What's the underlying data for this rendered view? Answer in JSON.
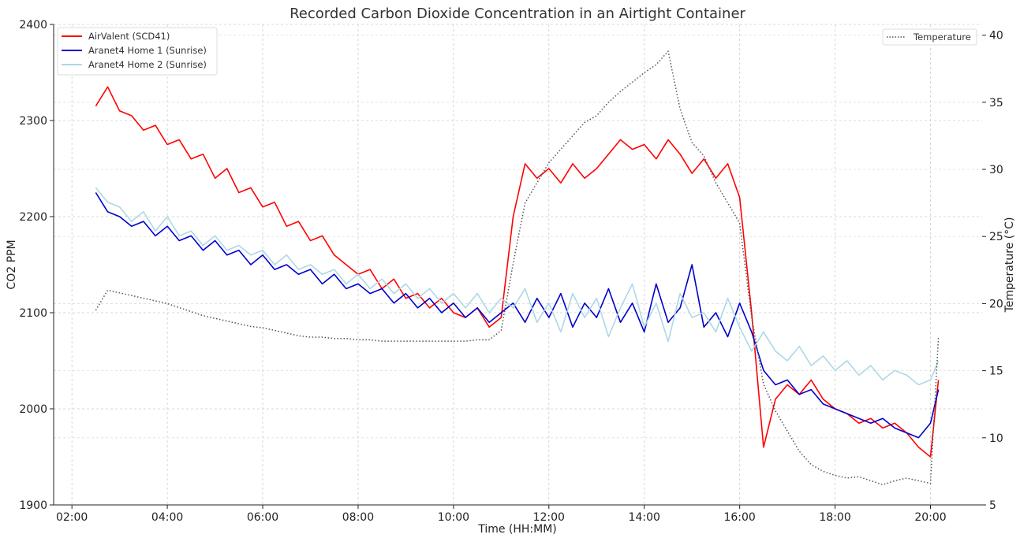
{
  "chart_data": {
    "type": "line",
    "title": "Recorded Carbon Dioxide Concentration in an Airtight Container",
    "xlabel": "Time (HH:MM)",
    "ylabel": "CO2 PPM",
    "ylabel_right": "Temperature (°C)",
    "xlim": [
      "01:37",
      "21:05"
    ],
    "ylim": [
      1900,
      2400
    ],
    "ylim_right": [
      5,
      40.8
    ],
    "x_ticks": [
      "02:00",
      "04:00",
      "06:00",
      "08:00",
      "10:00",
      "12:00",
      "14:00",
      "16:00",
      "18:00",
      "20:00"
    ],
    "y_ticks": [
      1900,
      2000,
      2100,
      2200,
      2300,
      2400
    ],
    "y_ticks_right": [
      5,
      10,
      15,
      20,
      25,
      30,
      35,
      40
    ],
    "grid": true,
    "legend_left": "top-left",
    "legend_right": "top-right",
    "x": [
      "02:30",
      "02:45",
      "03:00",
      "03:15",
      "03:30",
      "03:45",
      "04:00",
      "04:15",
      "04:30",
      "04:45",
      "05:00",
      "05:15",
      "05:30",
      "05:45",
      "06:00",
      "06:15",
      "06:30",
      "06:45",
      "07:00",
      "07:15",
      "07:30",
      "07:45",
      "08:00",
      "08:15",
      "08:30",
      "08:45",
      "09:00",
      "09:15",
      "09:30",
      "09:45",
      "10:00",
      "10:15",
      "10:30",
      "10:45",
      "11:00",
      "11:15",
      "11:30",
      "11:45",
      "12:00",
      "12:15",
      "12:30",
      "12:45",
      "13:00",
      "13:15",
      "13:30",
      "13:45",
      "14:00",
      "14:15",
      "14:30",
      "14:45",
      "15:00",
      "15:15",
      "15:30",
      "15:45",
      "16:00",
      "16:15",
      "16:30",
      "16:45",
      "17:00",
      "17:15",
      "17:30",
      "17:45",
      "18:00",
      "18:15",
      "18:30",
      "18:45",
      "19:00",
      "19:15",
      "19:30",
      "19:45",
      "20:00",
      "20:10"
    ],
    "series": [
      {
        "name": "AirValent (SCD41)",
        "axis": "left",
        "color": "#ff0000",
        "style": "solid",
        "values": [
          2315,
          2335,
          2310,
          2305,
          2290,
          2295,
          2275,
          2280,
          2260,
          2265,
          2240,
          2250,
          2225,
          2230,
          2210,
          2215,
          2190,
          2195,
          2175,
          2180,
          2160,
          2150,
          2140,
          2145,
          2125,
          2135,
          2115,
          2120,
          2105,
          2115,
          2100,
          2095,
          2105,
          2085,
          2095,
          2200,
          2255,
          2240,
          2250,
          2235,
          2255,
          2240,
          2250,
          2265,
          2280,
          2270,
          2275,
          2260,
          2280,
          2265,
          2245,
          2260,
          2240,
          2255,
          2220,
          2100,
          1960,
          2010,
          2025,
          2015,
          2030,
          2010,
          2000,
          1995,
          1985,
          1990,
          1980,
          1985,
          1975,
          1960,
          1950,
          2030
        ]
      },
      {
        "name": "Aranet4 Home 1 (Sunrise)",
        "axis": "left",
        "color": "#0000cc",
        "style": "solid",
        "values": [
          2225,
          2205,
          2200,
          2190,
          2195,
          2180,
          2190,
          2175,
          2180,
          2165,
          2175,
          2160,
          2165,
          2150,
          2160,
          2145,
          2150,
          2140,
          2145,
          2130,
          2140,
          2125,
          2130,
          2120,
          2125,
          2110,
          2120,
          2105,
          2115,
          2100,
          2110,
          2095,
          2105,
          2090,
          2100,
          2110,
          2090,
          2115,
          2095,
          2120,
          2085,
          2110,
          2095,
          2125,
          2090,
          2110,
          2080,
          2130,
          2090,
          2105,
          2150,
          2085,
          2100,
          2075,
          2110,
          2080,
          2040,
          2025,
          2030,
          2015,
          2020,
          2005,
          2000,
          1995,
          1990,
          1985,
          1990,
          1980,
          1975,
          1970,
          1985,
          2020
        ]
      },
      {
        "name": "Aranet4 Home 2 (Sunrise)",
        "axis": "left",
        "color": "#add8e6",
        "style": "solid",
        "values": [
          2230,
          2215,
          2210,
          2195,
          2205,
          2185,
          2200,
          2180,
          2185,
          2170,
          2180,
          2165,
          2170,
          2160,
          2165,
          2150,
          2160,
          2145,
          2150,
          2140,
          2145,
          2130,
          2140,
          2125,
          2135,
          2120,
          2130,
          2115,
          2125,
          2110,
          2120,
          2105,
          2120,
          2100,
          2115,
          2105,
          2125,
          2090,
          2110,
          2080,
          2120,
          2095,
          2115,
          2075,
          2105,
          2130,
          2085,
          2110,
          2070,
          2120,
          2095,
          2100,
          2080,
          2115,
          2085,
          2060,
          2080,
          2060,
          2050,
          2065,
          2045,
          2055,
          2040,
          2050,
          2035,
          2045,
          2030,
          2040,
          2035,
          2025,
          2030,
          2050
        ]
      },
      {
        "name": "Temperature",
        "axis": "right",
        "color": "#555555",
        "style": "dotted",
        "values": [
          19.5,
          21,
          20.8,
          20.6,
          20.4,
          20.2,
          20,
          19.7,
          19.4,
          19.1,
          18.9,
          18.7,
          18.5,
          18.3,
          18.2,
          18,
          17.8,
          17.6,
          17.5,
          17.5,
          17.4,
          17.4,
          17.3,
          17.3,
          17.2,
          17.2,
          17.2,
          17.2,
          17.2,
          17.2,
          17.2,
          17.2,
          17.3,
          17.3,
          18,
          23,
          27.5,
          29,
          30.5,
          31.5,
          32.5,
          33.5,
          34,
          35,
          35.8,
          36.5,
          37.2,
          37.8,
          38.8,
          34.5,
          32,
          31,
          29,
          27.5,
          26,
          19,
          14,
          12,
          10.5,
          9,
          8,
          7.5,
          7.2,
          7,
          7.1,
          6.8,
          6.5,
          6.8,
          7,
          6.8,
          6.6,
          17.5
        ]
      }
    ]
  }
}
